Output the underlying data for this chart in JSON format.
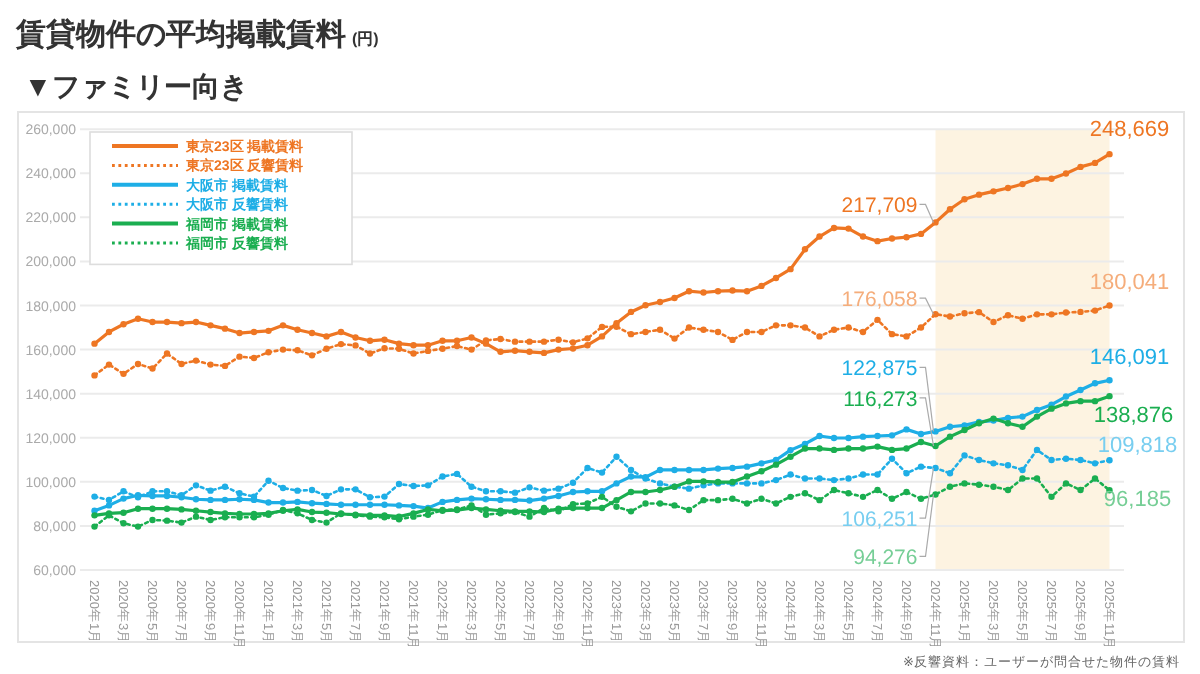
{
  "chart_data": {
    "type": "line",
    "title": "賃貸物件の平均掲載賃料",
    "ylabel": "(円)",
    "subtitle": "▼ファミリー向き",
    "annotations": [
      "※反響資料：ユーザーが問合せた物件の賃料"
    ],
    "x": [
      "2020-01",
      "2020-02",
      "2020-03",
      "2020-04",
      "2020-05",
      "2020-06",
      "2020-07",
      "2020-08",
      "2020-09",
      "2020-10",
      "2020-11",
      "2020-12",
      "2021-01",
      "2021-02",
      "2021-03",
      "2021-04",
      "2021-05",
      "2021-06",
      "2021-07",
      "2021-08",
      "2021-09",
      "2021-10",
      "2021-11",
      "2021-12",
      "2022-01",
      "2022-02",
      "2022-03",
      "2022-04",
      "2022-05",
      "2022-06",
      "2022-07",
      "2022-08",
      "2022-09",
      "2022-10",
      "2022-11",
      "2022-12",
      "2023-01",
      "2023-02",
      "2023-03",
      "2023-04",
      "2023-05",
      "2023-06",
      "2023-07",
      "2023-08",
      "2023-09",
      "2023-10",
      "2023-11",
      "2023-12",
      "2024-01",
      "2024-02",
      "2024-03",
      "2024-04",
      "2024-05",
      "2024-06",
      "2024-07",
      "2024-08",
      "2024-09",
      "2024-10",
      "2024-11",
      "2024-12",
      "2025-01",
      "2025-02",
      "2025-03",
      "2025-04",
      "2025-05",
      "2025-06",
      "2025-07",
      "2025-08",
      "2025-09",
      "2025-10",
      "2025-11"
    ],
    "xlim": [
      "2019-12",
      "2025-12"
    ],
    "xticks": [
      {
        "value": "2020-01",
        "label": "2020年1月"
      },
      {
        "value": "2020-03",
        "label": "2020年3月"
      },
      {
        "value": "2020-05",
        "label": "2020年5月"
      },
      {
        "value": "2020-07",
        "label": "2020年7月"
      },
      {
        "value": "2020-09",
        "label": "2020年9月"
      },
      {
        "value": "2020-11",
        "label": "2020年11月"
      },
      {
        "value": "2021-01",
        "label": "2021年1月"
      },
      {
        "value": "2021-03",
        "label": "2021年3月"
      },
      {
        "value": "2021-05",
        "label": "2021年5月"
      },
      {
        "value": "2021-07",
        "label": "2021年7月"
      },
      {
        "value": "2021-09",
        "label": "2021年9月"
      },
      {
        "value": "2021-11",
        "label": "2021年11月"
      },
      {
        "value": "2022-01",
        "label": "2022年1月"
      },
      {
        "value": "2022-03",
        "label": "2022年3月"
      },
      {
        "value": "2022-05",
        "label": "2022年5月"
      },
      {
        "value": "2022-07",
        "label": "2022年7月"
      },
      {
        "value": "2022-09",
        "label": "2022年9月"
      },
      {
        "value": "2022-11",
        "label": "2022年11月"
      },
      {
        "value": "2023-01",
        "label": "2023年1月"
      },
      {
        "value": "2023-03",
        "label": "2023年3月"
      },
      {
        "value": "2023-05",
        "label": "2023年5月"
      },
      {
        "value": "2023-07",
        "label": "2023年7月"
      },
      {
        "value": "2023-09",
        "label": "2023年9月"
      },
      {
        "value": "2023-11",
        "label": "2023年11月"
      },
      {
        "value": "2024-01",
        "label": "2024年1月"
      },
      {
        "value": "2024-03",
        "label": "2024年3月"
      },
      {
        "value": "2024-05",
        "label": "2024年5月"
      },
      {
        "value": "2024-07",
        "label": "2024年7月"
      },
      {
        "value": "2024-09",
        "label": "2024年9月"
      },
      {
        "value": "2024-11",
        "label": "2024年11月"
      },
      {
        "value": "2025-01",
        "label": "2025年1月"
      },
      {
        "value": "2025-03",
        "label": "2025年3月"
      },
      {
        "value": "2025-05",
        "label": "2025年5月"
      },
      {
        "value": "2025-07",
        "label": "2025年7月"
      },
      {
        "value": "2025-09",
        "label": "2025年9月"
      },
      {
        "value": "2025-11",
        "label": "2025年11月"
      }
    ],
    "ylim": [
      60000,
      260000
    ],
    "yticks": [
      {
        "value": 60000,
        "label": "60,000"
      },
      {
        "value": 80000,
        "label": "80,000"
      },
      {
        "value": 100000,
        "label": "100,000"
      },
      {
        "value": 120000,
        "label": "120,000"
      },
      {
        "value": 140000,
        "label": "140,000"
      },
      {
        "value": 160000,
        "label": "160,000"
      },
      {
        "value": 180000,
        "label": "180,000"
      },
      {
        "value": 200000,
        "label": "200,000"
      },
      {
        "value": 220000,
        "label": "220,000"
      },
      {
        "value": 240000,
        "label": "240,000"
      },
      {
        "value": 260000,
        "label": "260,000"
      }
    ],
    "grid": "y",
    "legend": "top left",
    "marker": "circle",
    "bands": [
      {
        "axis": "x",
        "from": "2024-11",
        "to": "2025-11",
        "color": "#fdf3e1"
      }
    ],
    "series": [
      {
        "name": "東京23区 掲載賃料",
        "color": "#ee7623",
        "line_style": "solid",
        "values": [
          162700,
          168000,
          171500,
          174000,
          172500,
          172500,
          172000,
          172500,
          171000,
          169500,
          167500,
          168000,
          168500,
          171000,
          169000,
          167500,
          166000,
          168000,
          165500,
          164000,
          164500,
          162700,
          162000,
          162000,
          164000,
          164000,
          165500,
          162700,
          159000,
          159500,
          159000,
          158500,
          160000,
          160500,
          162000,
          166000,
          172000,
          177100,
          180100,
          181600,
          183400,
          186500,
          185900,
          186500,
          186800,
          186500,
          188900,
          192500,
          196500,
          205500,
          211300,
          215200,
          214900,
          211300,
          209200,
          210400,
          211000,
          212500,
          217709,
          223700,
          228200,
          230300,
          231800,
          233300,
          235100,
          237500,
          237500,
          239900,
          242900,
          244700,
          248669
        ],
        "value_labels": [
          null,
          null,
          null,
          null,
          null,
          null,
          null,
          null,
          null,
          null,
          null,
          null,
          null,
          null,
          null,
          null,
          null,
          null,
          null,
          null,
          null,
          null,
          null,
          null,
          null,
          null,
          null,
          null,
          null,
          null,
          null,
          null,
          null,
          null,
          null,
          null,
          null,
          null,
          null,
          null,
          null,
          null,
          null,
          null,
          null,
          null,
          null,
          null,
          null,
          null,
          null,
          null,
          null,
          null,
          null,
          null,
          null,
          null,
          "217,709",
          null,
          null,
          null,
          null,
          null,
          null,
          null,
          null,
          null,
          null,
          null,
          "248,669"
        ]
      },
      {
        "name": "東京23区 反響賃料",
        "color": "#ee7623",
        "line_style": "dotted",
        "values": [
          148300,
          153200,
          149000,
          153500,
          151400,
          158200,
          153500,
          155000,
          153200,
          152600,
          156800,
          156200,
          158800,
          160000,
          159700,
          157400,
          160400,
          162500,
          161900,
          158200,
          160600,
          160400,
          158200,
          159400,
          160400,
          161600,
          160000,
          164200,
          164800,
          163600,
          163600,
          163600,
          164500,
          163300,
          165100,
          170300,
          170400,
          167000,
          168000,
          169000,
          165000,
          170000,
          169000,
          168000,
          164400,
          168000,
          168000,
          171000,
          171000,
          170000,
          166000,
          169000,
          170000,
          168000,
          173500,
          167000,
          166000,
          170000,
          176058,
          175000,
          176500,
          177000,
          172500,
          175600,
          174000,
          176000,
          176000,
          176800,
          177100,
          177700,
          180041
        ],
        "value_labels": [
          null,
          null,
          null,
          null,
          null,
          null,
          null,
          null,
          null,
          null,
          null,
          null,
          null,
          null,
          null,
          null,
          null,
          null,
          null,
          null,
          null,
          null,
          null,
          null,
          null,
          null,
          null,
          null,
          null,
          null,
          null,
          null,
          null,
          null,
          null,
          null,
          null,
          null,
          null,
          null,
          null,
          null,
          null,
          null,
          null,
          null,
          null,
          null,
          null,
          null,
          null,
          null,
          null,
          null,
          null,
          null,
          null,
          null,
          "176,058",
          null,
          null,
          null,
          null,
          null,
          null,
          null,
          null,
          null,
          null,
          null,
          "180,041"
        ]
      },
      {
        "name": "大阪市 掲載賃料",
        "color": "#1eaee6",
        "line_style": "solid",
        "values": [
          86900,
          89300,
          92400,
          93900,
          93600,
          93600,
          93000,
          92100,
          91800,
          91800,
          92100,
          91800,
          90600,
          90600,
          90900,
          90300,
          90000,
          89600,
          89600,
          89600,
          89600,
          89300,
          89000,
          88100,
          90900,
          91800,
          92400,
          92100,
          91800,
          91800,
          91500,
          92400,
          93600,
          95400,
          95700,
          95700,
          99300,
          102400,
          102100,
          105400,
          105400,
          105400,
          105400,
          106000,
          106300,
          106900,
          108400,
          109900,
          114400,
          117200,
          120800,
          119900,
          119900,
          120500,
          120800,
          121100,
          123800,
          121700,
          122875,
          125000,
          125600,
          127200,
          127800,
          129000,
          129600,
          132600,
          135000,
          138700,
          141700,
          144700,
          146091
        ],
        "value_labels": [
          null,
          null,
          null,
          null,
          null,
          null,
          null,
          null,
          null,
          null,
          null,
          null,
          null,
          null,
          null,
          null,
          null,
          null,
          null,
          null,
          null,
          null,
          null,
          null,
          null,
          null,
          null,
          null,
          null,
          null,
          null,
          null,
          null,
          null,
          null,
          null,
          null,
          null,
          null,
          null,
          null,
          null,
          null,
          null,
          null,
          null,
          null,
          null,
          null,
          null,
          null,
          null,
          null,
          null,
          null,
          null,
          null,
          null,
          "122,875",
          null,
          null,
          null,
          null,
          null,
          null,
          null,
          null,
          null,
          null,
          null,
          "146,091"
        ]
      },
      {
        "name": "大阪市 反響賃料",
        "color": "#1eaee6",
        "line_style": "dotted",
        "values": [
          93300,
          91800,
          95700,
          93000,
          95700,
          95700,
          93900,
          98400,
          96000,
          97800,
          94800,
          93300,
          100500,
          97200,
          96000,
          96300,
          93600,
          96600,
          96600,
          93000,
          93300,
          99000,
          98100,
          98400,
          102400,
          103600,
          97800,
          95700,
          95700,
          95100,
          97500,
          96000,
          96900,
          99600,
          106300,
          104200,
          111400,
          105400,
          101500,
          99300,
          97800,
          96900,
          98400,
          99300,
          99300,
          99300,
          99300,
          100800,
          103300,
          101500,
          101500,
          100800,
          101500,
          103300,
          103300,
          110500,
          103900,
          106900,
          106251,
          103900,
          112000,
          109900,
          108400,
          107500,
          105400,
          114500,
          109900,
          110500,
          109900,
          108400,
          109818
        ],
        "value_labels": [
          null,
          null,
          null,
          null,
          null,
          null,
          null,
          null,
          null,
          null,
          null,
          null,
          null,
          null,
          null,
          null,
          null,
          null,
          null,
          null,
          null,
          null,
          null,
          null,
          null,
          null,
          null,
          null,
          null,
          null,
          null,
          null,
          null,
          null,
          null,
          null,
          null,
          null,
          null,
          null,
          null,
          null,
          null,
          null,
          null,
          null,
          null,
          null,
          null,
          null,
          null,
          null,
          null,
          null,
          null,
          null,
          null,
          null,
          "106,251",
          null,
          null,
          null,
          null,
          null,
          null,
          null,
          null,
          null,
          null,
          null,
          "109,818"
        ]
      },
      {
        "name": "福岡市 掲載賃料",
        "color": "#1aae50",
        "line_style": "solid",
        "values": [
          84800,
          85700,
          86000,
          87800,
          87800,
          87800,
          87500,
          86900,
          86300,
          85700,
          85400,
          85400,
          85700,
          86900,
          87500,
          86300,
          86000,
          85400,
          85100,
          84800,
          84800,
          84200,
          85700,
          87500,
          86900,
          87200,
          88100,
          87500,
          86900,
          86600,
          86600,
          86300,
          87800,
          88100,
          88100,
          88100,
          91700,
          95400,
          95400,
          96300,
          97800,
          100200,
          100200,
          99900,
          99900,
          102400,
          104800,
          107800,
          111400,
          115100,
          115100,
          114500,
          115100,
          115100,
          116000,
          114500,
          115100,
          118100,
          116273,
          120500,
          123500,
          126600,
          128700,
          126600,
          125000,
          129600,
          133200,
          135600,
          136600,
          136600,
          138876
        ],
        "value_labels": [
          null,
          null,
          null,
          null,
          null,
          null,
          null,
          null,
          null,
          null,
          null,
          null,
          null,
          null,
          null,
          null,
          null,
          null,
          null,
          null,
          null,
          null,
          null,
          null,
          null,
          null,
          null,
          null,
          null,
          null,
          null,
          null,
          null,
          null,
          null,
          null,
          null,
          null,
          null,
          null,
          null,
          null,
          null,
          null,
          null,
          null,
          null,
          null,
          null,
          null,
          null,
          null,
          null,
          null,
          null,
          null,
          null,
          null,
          "116,273",
          null,
          null,
          null,
          null,
          null,
          null,
          null,
          null,
          null,
          null,
          null,
          "138,876"
        ]
      },
      {
        "name": "福岡市 反響賃料",
        "color": "#1aae50",
        "line_style": "dotted",
        "values": [
          79700,
          84800,
          81200,
          79700,
          82700,
          82400,
          81500,
          84200,
          82700,
          83900,
          83900,
          83900,
          85100,
          87200,
          85700,
          82700,
          81500,
          85700,
          84800,
          84200,
          83900,
          83000,
          84200,
          85100,
          87200,
          87500,
          89300,
          85100,
          85700,
          86300,
          84200,
          88100,
          86600,
          89900,
          90200,
          93200,
          88700,
          86600,
          90200,
          90200,
          89300,
          87200,
          91700,
          91700,
          92300,
          90200,
          92300,
          90200,
          93200,
          94800,
          91700,
          96300,
          94800,
          93200,
          96300,
          92300,
          95400,
          92300,
          94276,
          97800,
          99300,
          98700,
          97800,
          96300,
          101500,
          101500,
          93200,
          99300,
          96300,
          101500,
          96185
        ],
        "value_labels": [
          null,
          null,
          null,
          null,
          null,
          null,
          null,
          null,
          null,
          null,
          null,
          null,
          null,
          null,
          null,
          null,
          null,
          null,
          null,
          null,
          null,
          null,
          null,
          null,
          null,
          null,
          null,
          null,
          null,
          null,
          null,
          null,
          null,
          null,
          null,
          null,
          null,
          null,
          null,
          null,
          null,
          null,
          null,
          null,
          null,
          null,
          null,
          null,
          null,
          null,
          null,
          null,
          null,
          null,
          null,
          null,
          null,
          null,
          "94,276",
          null,
          null,
          null,
          null,
          null,
          null,
          null,
          null,
          null,
          null,
          null,
          "96,185"
        ]
      }
    ]
  }
}
